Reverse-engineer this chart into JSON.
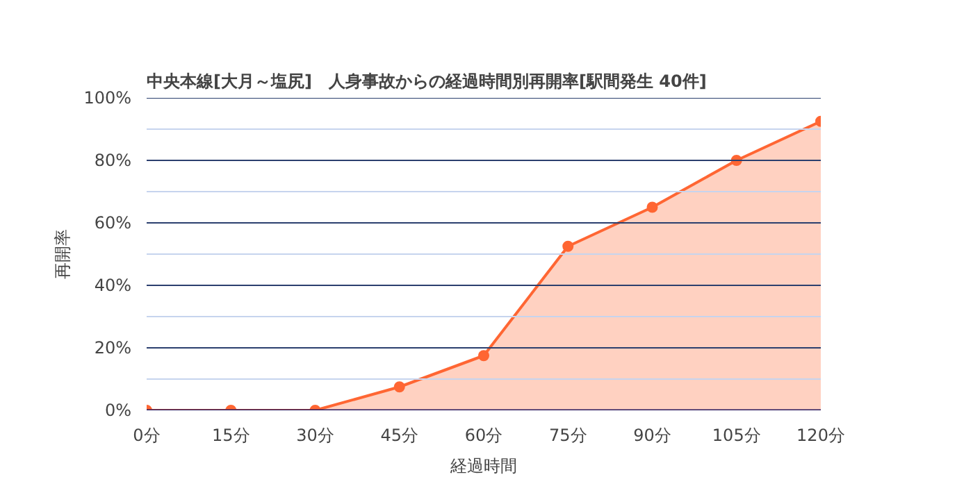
{
  "chart_data": {
    "type": "area",
    "title": "中央本線[大月～塩尻]　人身事故からの経過時間別再開率[駅間発生 40件]",
    "xlabel": "経過時間",
    "ylabel": "再開率",
    "x": [
      0,
      15,
      30,
      45,
      60,
      75,
      90,
      105,
      120
    ],
    "series": [
      {
        "color": "#ff6633",
        "values": [
          0,
          0,
          0,
          7.5,
          17.5,
          52.5,
          65,
          80,
          92.5
        ]
      }
    ],
    "xlim": [
      0,
      120
    ],
    "xticks": [
      {
        "value": 0,
        "label": "0分"
      },
      {
        "value": 15,
        "label": "15分"
      },
      {
        "value": 30,
        "label": "30分"
      },
      {
        "value": 45,
        "label": "45分"
      },
      {
        "value": 60,
        "label": "60分"
      },
      {
        "value": 75,
        "label": "75分"
      },
      {
        "value": 90,
        "label": "90分"
      },
      {
        "value": 105,
        "label": "105分"
      },
      {
        "value": 120,
        "label": "120分"
      }
    ],
    "ylim": [
      0,
      100
    ],
    "yticks": [
      {
        "value": 0,
        "label": "0%"
      },
      {
        "value": 10,
        "label": null
      },
      {
        "value": 20,
        "label": "20%"
      },
      {
        "value": 30,
        "label": null
      },
      {
        "value": 40,
        "label": "40%"
      },
      {
        "value": 50,
        "label": null
      },
      {
        "value": 60,
        "label": "60%"
      },
      {
        "value": 70,
        "label": null
      },
      {
        "value": 80,
        "label": "80%"
      },
      {
        "value": 90,
        "label": null
      },
      {
        "value": 100,
        "label": "100%"
      }
    ],
    "grid": "y",
    "marker": "circle",
    "line_style": "solid"
  }
}
